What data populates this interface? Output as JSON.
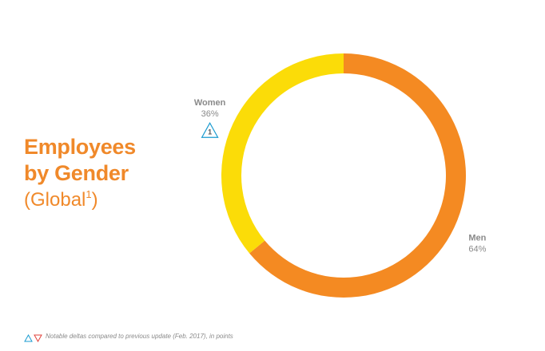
{
  "chart_data": {
    "type": "pie",
    "donut": true,
    "title": "Employees by Gender",
    "subtitle": {
      "text": "(Global",
      "sup": "1",
      "close": ")"
    },
    "categories": [
      "Men",
      "Women"
    ],
    "values": [
      64,
      36
    ],
    "value_labels": [
      "64%",
      "36%"
    ],
    "colors": [
      "#f48a22",
      "#fbdc08"
    ],
    "deltas": [
      null,
      1
    ],
    "footnote": "Notable deltas compared to previous update (Feb. 2017), in points"
  }
}
